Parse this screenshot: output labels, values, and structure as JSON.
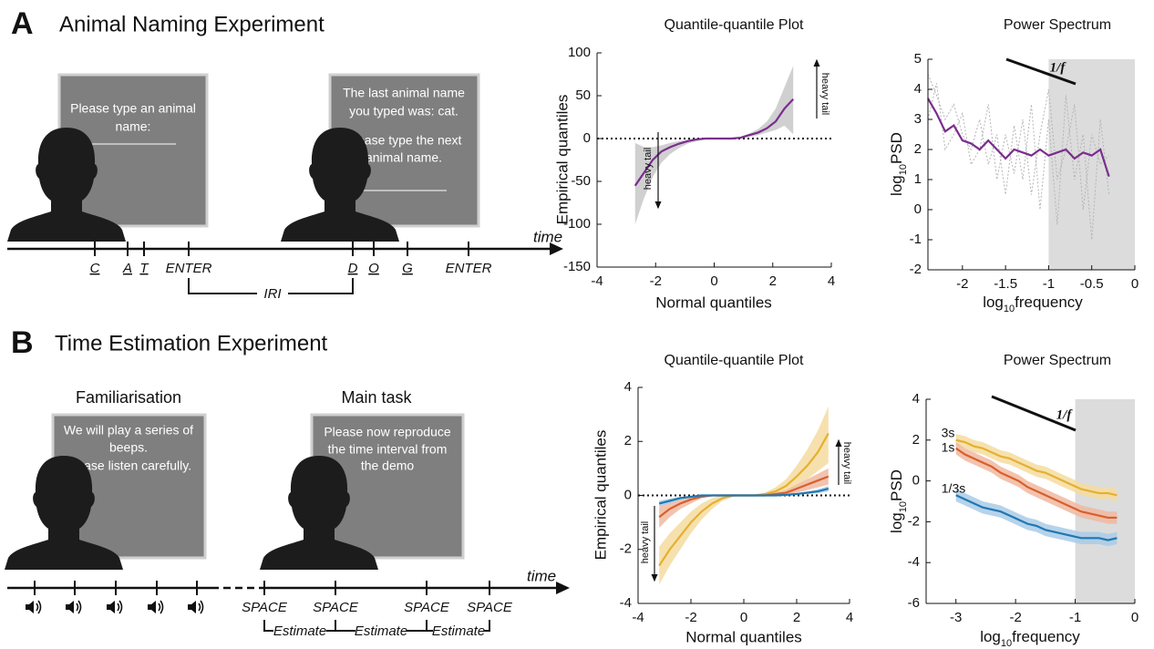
{
  "panels": [
    {
      "label": "A",
      "title": "Animal Naming Experiment",
      "screens": [
        [
          "Please type an animal",
          "name:"
        ],
        [
          "The last animal name",
          "you typed was: cat.",
          "Please type the next",
          "animal name."
        ]
      ],
      "time_label": "time",
      "keys": [
        "C",
        "A",
        "T",
        "ENTER",
        "D",
        "O",
        "G",
        "ENTER"
      ],
      "interval_label": "IRI"
    },
    {
      "label": "B",
      "title": "Time Estimation Experiment",
      "phases": [
        "Familiarisation",
        "Main task"
      ],
      "screens": [
        [
          "We will play a series of",
          "beeps.",
          "Please listen carefully."
        ],
        [
          "Please now reproduce",
          "the time interval from",
          "the demo"
        ]
      ],
      "time_label": "time",
      "keys": [
        "SPACE",
        "SPACE",
        "SPACE",
        "SPACE"
      ],
      "interval_labels": [
        "Estimate",
        "Estimate",
        "Estimate"
      ]
    }
  ],
  "chart_data": [
    {
      "type": "line",
      "title": "Quantile-quantile Plot",
      "xlabel": "Normal quantiles",
      "ylabel": "Empirical quantiles",
      "x": [
        -2.7,
        -2.4,
        -2.1,
        -1.8,
        -1.5,
        -1.2,
        -0.9,
        -0.6,
        -0.3,
        0,
        0.3,
        0.6,
        0.9,
        1.2,
        1.5,
        1.8,
        2.1,
        2.4,
        2.7
      ],
      "series": [
        {
          "color": "#7b2d8e",
          "band_color": "#c8c8c8",
          "values": [
            -55,
            -40,
            -25,
            -15,
            -10,
            -6,
            -3,
            -1,
            0,
            0,
            0,
            0,
            1,
            4,
            7,
            12,
            20,
            35,
            46
          ],
          "lower": [
            -100,
            -70,
            -45,
            -28,
            -18,
            -11,
            -6,
            -3,
            -1,
            0,
            0,
            -1,
            0,
            2,
            4,
            7,
            10,
            15,
            5
          ],
          "upper": [
            -5,
            -10,
            -10,
            -8,
            -5,
            -3,
            -1,
            0,
            0,
            0,
            0,
            1,
            2,
            6,
            11,
            20,
            35,
            60,
            85
          ]
        }
      ],
      "xlim": [
        -4,
        4
      ],
      "ylim": [
        -150,
        100
      ],
      "xticks": [
        -4,
        -2,
        0,
        2,
        4
      ],
      "yticks": [
        -150,
        -100,
        -50,
        0,
        50,
        100
      ],
      "reference_line": 0,
      "annotations": [
        "heavy tail",
        "heavy tail"
      ]
    },
    {
      "type": "line",
      "title": "Power Spectrum",
      "xlabel": [
        "log",
        "10",
        "frequency"
      ],
      "ylabel": [
        "log",
        "10",
        "PSD"
      ],
      "x": [
        -2.4,
        -2.3,
        -2.2,
        -2.1,
        -2.0,
        -1.9,
        -1.8,
        -1.7,
        -1.6,
        -1.5,
        -1.4,
        -1.3,
        -1.2,
        -1.1,
        -1.0,
        -0.9,
        -0.8,
        -0.7,
        -0.6,
        -0.5,
        -0.4,
        -0.3
      ],
      "series": [
        {
          "color": "#b4b4b4",
          "linestyle": "dotted",
          "values": [
            4.5,
            3.8,
            3.0,
            3.5,
            2.5,
            2.0,
            3.0,
            1.5,
            2.5,
            0.5,
            2.8,
            1.0,
            3.5,
            0.0,
            3.0,
            -0.5,
            3.8,
            1.0,
            2.5,
            -1.0,
            3.0,
            0.5
          ]
        },
        {
          "color": "#b4b4b4",
          "linestyle": "dotted",
          "values": [
            3.0,
            4.2,
            2.0,
            2.5,
            3.2,
            1.5,
            2.0,
            3.5,
            1.0,
            2.5,
            1.2,
            3.0,
            0.5,
            2.5,
            4.0,
            1.0,
            2.0,
            3.5,
            0.0,
            2.5,
            1.5,
            1.8
          ]
        },
        {
          "color": "#7b2d8e",
          "values": [
            3.7,
            3.2,
            2.6,
            2.8,
            2.3,
            2.2,
            2.0,
            2.3,
            2.0,
            1.7,
            2.0,
            1.9,
            1.8,
            2.0,
            1.8,
            1.9,
            2.0,
            1.7,
            1.9,
            1.8,
            2.0,
            1.1
          ]
        }
      ],
      "xlim": [
        -2.4,
        0
      ],
      "ylim": [
        -2,
        5
      ],
      "xticks": [
        -2,
        -1.5,
        -1,
        -0.5,
        0
      ],
      "yticks": [
        -2,
        -1,
        0,
        1,
        2,
        3,
        4,
        5
      ],
      "shade": [
        -1,
        0
      ],
      "annotations": [
        "1/f"
      ]
    },
    {
      "type": "line",
      "title": "Quantile-quantile Plot",
      "xlabel": "Normal quantiles",
      "ylabel": "Empirical quantiles",
      "x": [
        -3.2,
        -2.8,
        -2.4,
        -2.0,
        -1.6,
        -1.2,
        -0.8,
        -0.4,
        0,
        0.4,
        0.8,
        1.2,
        1.6,
        2.0,
        2.4,
        2.8,
        3.2
      ],
      "series": [
        {
          "color": "#e6b02e",
          "band_color": "#f5dca0",
          "values": [
            -2.6,
            -2.0,
            -1.5,
            -1.0,
            -0.6,
            -0.3,
            -0.1,
            0,
            0,
            0,
            0.05,
            0.15,
            0.35,
            0.7,
            1.1,
            1.6,
            2.3
          ],
          "lower": [
            -3.3,
            -2.6,
            -2.0,
            -1.4,
            -0.9,
            -0.5,
            -0.2,
            -0.05,
            0,
            0,
            0,
            0.05,
            0.15,
            0.35,
            0.6,
            0.9,
            1.2
          ],
          "upper": [
            -1.9,
            -1.4,
            -1.0,
            -0.6,
            -0.3,
            -0.1,
            0,
            0.05,
            0,
            0,
            0.1,
            0.3,
            0.6,
            1.1,
            1.7,
            2.4,
            3.3
          ]
        },
        {
          "color": "#d95f2b",
          "band_color": "#f0b9a0",
          "values": [
            -0.8,
            -0.5,
            -0.3,
            -0.15,
            -0.05,
            0,
            0,
            0,
            0,
            0,
            0,
            0.05,
            0.1,
            0.25,
            0.4,
            0.55,
            0.7
          ],
          "lower": [
            -1.2,
            -0.8,
            -0.5,
            -0.3,
            -0.1,
            -0.02,
            0,
            0,
            0,
            0,
            0,
            0,
            0.02,
            0.1,
            0.2,
            0.3,
            0.4
          ],
          "upper": [
            -0.4,
            -0.25,
            -0.15,
            -0.05,
            0,
            0.02,
            0,
            0,
            0,
            0,
            0.02,
            0.1,
            0.2,
            0.4,
            0.6,
            0.8,
            1.0
          ]
        },
        {
          "color": "#1f77b4",
          "band_color": "#a9cbe6",
          "values": [
            -0.3,
            -0.2,
            -0.1,
            -0.05,
            0,
            0,
            0,
            0,
            0,
            0,
            0,
            0,
            0.02,
            0.05,
            0.1,
            0.15,
            0.25
          ],
          "lower": [
            -0.4,
            -0.3,
            -0.15,
            -0.08,
            -0.02,
            0,
            0,
            0,
            0,
            0,
            0,
            0,
            0,
            0.02,
            0.05,
            0.08,
            0.15
          ],
          "upper": [
            -0.2,
            -0.12,
            -0.05,
            -0.02,
            0,
            0,
            0,
            0,
            0,
            0,
            0,
            0.02,
            0.05,
            0.08,
            0.15,
            0.22,
            0.35
          ]
        }
      ],
      "xlim": [
        -4,
        4
      ],
      "ylim": [
        -4,
        4
      ],
      "xticks": [
        -4,
        -2,
        0,
        2,
        4
      ],
      "yticks": [
        -4,
        -2,
        0,
        2,
        4
      ],
      "reference_line": 0,
      "annotations": [
        "heavy tail",
        "heavy tail"
      ]
    },
    {
      "type": "line",
      "title": "Power Spectrum",
      "xlabel": [
        "log",
        "10",
        "frequency"
      ],
      "ylabel": [
        "log",
        "10",
        "PSD"
      ],
      "x": [
        -3,
        -2.85,
        -2.7,
        -2.55,
        -2.4,
        -2.25,
        -2.1,
        -1.95,
        -1.8,
        -1.65,
        -1.5,
        -1.35,
        -1.2,
        -1.05,
        -0.9,
        -0.75,
        -0.6,
        -0.45,
        -0.3
      ],
      "series": [
        {
          "name": "3s",
          "color": "#e6b02e",
          "band_color": "#f5dca0",
          "band_halfwidth": 0.3,
          "values": [
            2.0,
            1.9,
            1.7,
            1.6,
            1.4,
            1.2,
            1.1,
            0.9,
            0.7,
            0.5,
            0.4,
            0.2,
            0.0,
            -0.2,
            -0.4,
            -0.5,
            -0.6,
            -0.6,
            -0.7
          ]
        },
        {
          "name": "1s",
          "color": "#d95f2b",
          "band_color": "#f0b9a0",
          "band_halfwidth": 0.3,
          "values": [
            1.6,
            1.3,
            1.1,
            0.9,
            0.7,
            0.4,
            0.2,
            0,
            -0.3,
            -0.5,
            -0.7,
            -0.9,
            -1.1,
            -1.3,
            -1.5,
            -1.6,
            -1.7,
            -1.8,
            -1.8
          ]
        },
        {
          "name": "1/3s",
          "color": "#1f77b4",
          "band_color": "#a9cbe6",
          "band_halfwidth": 0.3,
          "values": [
            -0.7,
            -0.9,
            -1.1,
            -1.3,
            -1.4,
            -1.5,
            -1.7,
            -1.9,
            -2.1,
            -2.2,
            -2.4,
            -2.5,
            -2.6,
            -2.7,
            -2.8,
            -2.8,
            -2.8,
            -2.9,
            -2.8
          ]
        }
      ],
      "xlim": [
        -3.5,
        0
      ],
      "ylim": [
        -6,
        4
      ],
      "xticks": [
        -3,
        -2,
        -1,
        0
      ],
      "yticks": [
        -6,
        -4,
        -2,
        0,
        2,
        4
      ],
      "shade": [
        -1,
        0
      ],
      "annotations": [
        "1/f"
      ]
    }
  ]
}
